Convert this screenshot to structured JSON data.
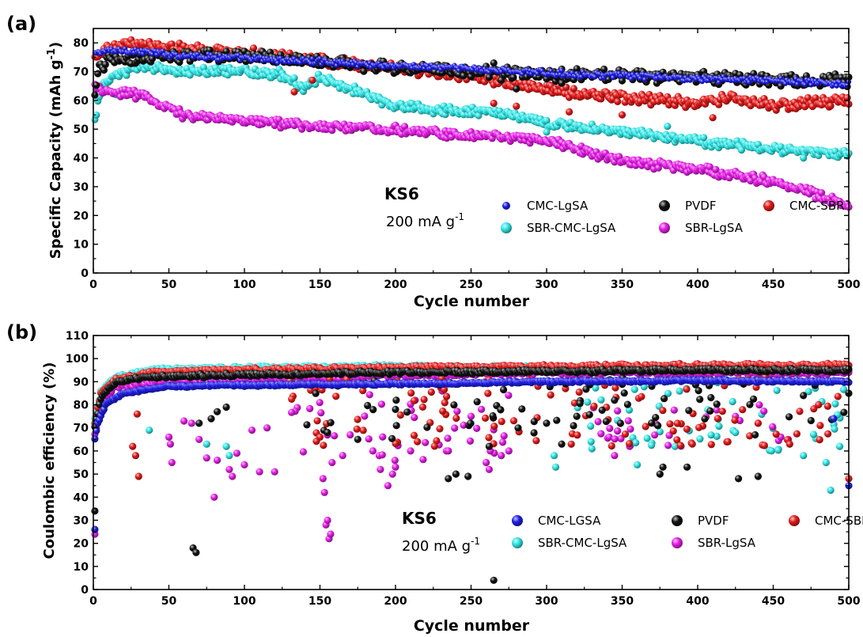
{
  "charts": [
    {
      "panel_label": "(a)",
      "type": "scatter",
      "xlabel": "Cycle number",
      "ylabel": "Specific Capacity (mAh g",
      "ylabel_sup": "-1",
      "ylabel_close": ")",
      "xlim": [
        0,
        500
      ],
      "ylim": [
        0,
        85
      ],
      "x_ticks": [
        0,
        50,
        100,
        150,
        200,
        250,
        300,
        350,
        400,
        450,
        500
      ],
      "y_ticks": [
        0,
        10,
        20,
        30,
        40,
        50,
        60,
        70,
        80
      ],
      "grid": false,
      "annotation_title": "KS6",
      "annotation_rate": "200 mA g",
      "annotation_rate_sup": "-1",
      "legend_position": "bottom-right",
      "series": [
        {
          "name": "CMC-LgSA",
          "color": "#1e1ee6",
          "size": "small",
          "keypoints": [
            [
              1,
              76
            ],
            [
              5,
              77
            ],
            [
              20,
              77.5
            ],
            [
              50,
              76
            ],
            [
              100,
              74.5
            ],
            [
              150,
              73.5
            ],
            [
              200,
              72
            ],
            [
              250,
              71
            ],
            [
              300,
              69.5
            ],
            [
              350,
              68.5
            ],
            [
              400,
              67.5
            ],
            [
              450,
              67
            ],
            [
              500,
              65.5
            ]
          ],
          "noise": 0.8
        },
        {
          "name": "PVDF",
          "color": "#101010",
          "size": "large",
          "keypoints": [
            [
              1,
              62
            ],
            [
              3,
              70
            ],
            [
              10,
              74
            ],
            [
              30,
              75
            ],
            [
              80,
              75.5
            ],
            [
              130,
              74.5
            ],
            [
              200,
              71.5
            ],
            [
              260,
              70
            ],
            [
              300,
              69
            ],
            [
              350,
              68.5
            ],
            [
              400,
              68
            ],
            [
              450,
              67
            ],
            [
              500,
              67
            ]
          ],
          "noise": 1.6,
          "outliers": [
            [
              77,
              77.5
            ],
            [
              265,
              73
            ],
            [
              270,
              67
            ],
            [
              280,
              64
            ],
            [
              310,
              66
            ],
            [
              320,
              71
            ],
            [
              400,
              69
            ],
            [
              455,
              65
            ]
          ]
        },
        {
          "name": "CMC-SBR",
          "color": "#e41a1a",
          "size": "large",
          "keypoints": [
            [
              1,
              75
            ],
            [
              10,
              78
            ],
            [
              25,
              79.5
            ],
            [
              60,
              78
            ],
            [
              100,
              76.5
            ],
            [
              150,
              74
            ],
            [
              200,
              71
            ],
            [
              250,
              68
            ],
            [
              300,
              64
            ],
            [
              350,
              61
            ],
            [
              400,
              59
            ],
            [
              420,
              61
            ],
            [
              450,
              58
            ],
            [
              500,
              60
            ]
          ],
          "noise": 1.4,
          "outliers": [
            [
              133,
              63
            ],
            [
              145,
              67
            ],
            [
              265,
              59
            ],
            [
              280,
              58
            ],
            [
              315,
              56
            ],
            [
              350,
              55
            ],
            [
              410,
              54
            ]
          ]
        },
        {
          "name": "SBR-CMC-LgSA",
          "color": "#33e6e6",
          "size": "large",
          "keypoints": [
            [
              1,
              53
            ],
            [
              5,
              65
            ],
            [
              20,
              70
            ],
            [
              30,
              72
            ],
            [
              60,
              70
            ],
            [
              100,
              70
            ],
            [
              125,
              69
            ],
            [
              140,
              64
            ],
            [
              150,
              68
            ],
            [
              170,
              64
            ],
            [
              200,
              58
            ],
            [
              250,
              56
            ],
            [
              270,
              56
            ],
            [
              300,
              52
            ],
            [
              350,
              49
            ],
            [
              400,
              46
            ],
            [
              450,
              43
            ],
            [
              500,
              41
            ]
          ],
          "noise": 1.2,
          "outliers": [
            [
              15,
              62
            ],
            [
              300,
              49
            ],
            [
              380,
              51
            ],
            [
              470,
              40
            ]
          ]
        },
        {
          "name": "SBR-LgSA",
          "color": "#e61ee6",
          "size": "large",
          "keypoints": [
            [
              1,
              65
            ],
            [
              10,
              63
            ],
            [
              30,
              62
            ],
            [
              50,
              57
            ],
            [
              60,
              55
            ],
            [
              100,
              53
            ],
            [
              150,
              51
            ],
            [
              200,
              50
            ],
            [
              250,
              48
            ],
            [
              300,
              46
            ],
            [
              320,
              43
            ],
            [
              350,
              39
            ],
            [
              400,
              36
            ],
            [
              450,
              32
            ],
            [
              480,
              27
            ],
            [
              500,
              23
            ]
          ],
          "noise": 1.2
        }
      ]
    },
    {
      "panel_label": "(b)",
      "type": "scatter",
      "xlabel": "Cycle number",
      "ylabel": "Coulombic efficiency (%)",
      "xlim": [
        0,
        500
      ],
      "ylim": [
        0,
        110
      ],
      "x_ticks": [
        0,
        50,
        100,
        150,
        200,
        250,
        300,
        350,
        400,
        450,
        500
      ],
      "y_ticks": [
        0,
        10,
        20,
        30,
        40,
        50,
        60,
        70,
        80,
        90,
        100,
        110
      ],
      "grid": false,
      "annotation_title": "KS6",
      "annotation_rate": "200 mA g",
      "annotation_rate_sup": "-1",
      "legend_position": "bottom-right",
      "series": [
        {
          "name": "CMC-LGSA",
          "color": "#1e1ee6",
          "size": "large",
          "keypoints": [
            [
              1,
              65
            ],
            [
              3,
              72
            ],
            [
              8,
              80
            ],
            [
              20,
              85
            ],
            [
              50,
              88
            ],
            [
              100,
              88.5
            ],
            [
              200,
              89
            ],
            [
              300,
              90
            ],
            [
              400,
              90.5
            ],
            [
              500,
              90
            ]
          ],
          "noise": 0.4,
          "outliers": [
            [
              1,
              26
            ],
            [
              500,
              45
            ],
            [
              490,
              74
            ]
          ]
        },
        {
          "name": "PVDF",
          "color": "#101010",
          "size": "large",
          "keypoints": [
            [
              1,
              70
            ],
            [
              5,
              83
            ],
            [
              15,
              90
            ],
            [
              40,
              92
            ],
            [
              100,
              93
            ],
            [
              200,
              94
            ],
            [
              300,
              94.5
            ],
            [
              400,
              95
            ],
            [
              500,
              95
            ]
          ],
          "noise": 0.6,
          "outliers": [
            [
              1,
              34
            ],
            [
              66,
              18
            ],
            [
              68,
              16
            ],
            [
              70,
              72
            ],
            [
              78,
              74
            ],
            [
              82,
              77
            ],
            [
              88,
              79
            ],
            [
              155,
              68
            ],
            [
              175,
              65
            ],
            [
              200,
              78
            ],
            [
              235,
              48
            ],
            [
              240,
              50
            ],
            [
              248,
              49
            ],
            [
              262,
              62
            ],
            [
              265,
              4
            ],
            [
              300,
              72
            ],
            [
              310,
              63
            ],
            [
              320,
              75
            ],
            [
              345,
              82
            ],
            [
              375,
              50
            ],
            [
              377,
              53
            ],
            [
              393,
              53
            ],
            [
              427,
              48
            ],
            [
              440,
              49
            ],
            [
              438,
              67
            ],
            [
              470,
              84
            ],
            [
              500,
              85
            ]
          ],
          "scatter_band": [
            [
              130,
              300,
              65,
              92,
              28
            ],
            [
              300,
              500,
              70,
              92,
              40
            ]
          ]
        },
        {
          "name": "CMC-SBR",
          "color": "#e41a1a",
          "size": "large",
          "keypoints": [
            [
              1,
              72
            ],
            [
              5,
              85
            ],
            [
              15,
              91
            ],
            [
              40,
              94
            ],
            [
              100,
              95
            ],
            [
              200,
              96
            ],
            [
              300,
              96.5
            ],
            [
              400,
              97
            ],
            [
              500,
              97
            ]
          ],
          "noise": 0.7,
          "outliers": [
            [
              26,
              62
            ],
            [
              28,
              58
            ],
            [
              30,
              49
            ],
            [
              29,
              76
            ],
            [
              150,
              66
            ],
            [
              420,
              64
            ],
            [
              440,
              72
            ],
            [
              480,
              80
            ],
            [
              500,
              48
            ]
          ],
          "scatter_band": [
            [
              125,
              500,
              62,
              92,
              120
            ]
          ]
        },
        {
          "name": "SBR-CMC-LgSA",
          "color": "#33e6e6",
          "size": "large",
          "keypoints": [
            [
              1,
              74
            ],
            [
              5,
              86
            ],
            [
              15,
              92
            ],
            [
              40,
              95
            ],
            [
              100,
              96
            ],
            [
              200,
              96.5
            ],
            [
              300,
              96
            ],
            [
              400,
              96
            ],
            [
              500,
              95
            ]
          ],
          "noise": 0.7,
          "outliers": [
            [
              37,
              69
            ],
            [
              75,
              63
            ],
            [
              88,
              62
            ],
            [
              90,
              58
            ],
            [
              250,
              72
            ],
            [
              305,
              58
            ],
            [
              306,
              53
            ],
            [
              330,
              61
            ],
            [
              360,
              54
            ],
            [
              385,
              62
            ],
            [
              425,
              68
            ],
            [
              470,
              58
            ],
            [
              485,
              55
            ],
            [
              488,
              43
            ],
            [
              494,
              62
            ]
          ],
          "scatter_band": [
            [
              320,
              500,
              60,
              90,
              50
            ]
          ]
        },
        {
          "name": "SBR-LgSA",
          "color": "#e61ee6",
          "size": "large",
          "keypoints": [
            [
              1,
              67
            ],
            [
              5,
              80
            ],
            [
              15,
              88
            ],
            [
              40,
              90
            ],
            [
              100,
              91
            ],
            [
              200,
              93
            ],
            [
              300,
              94
            ],
            [
              400,
              94
            ],
            [
              500,
              94
            ]
          ],
          "noise": 0.8,
          "outliers": [
            [
              1,
              24
            ],
            [
              50,
              66
            ],
            [
              51,
              63
            ],
            [
              52,
              55
            ],
            [
              60,
              73
            ],
            [
              65,
              72
            ],
            [
              70,
              65
            ],
            [
              75,
              57
            ],
            [
              80,
              40
            ],
            [
              82,
              56
            ],
            [
              90,
              52
            ],
            [
              92,
              49
            ],
            [
              95,
              59
            ],
            [
              100,
              54
            ],
            [
              105,
              69
            ],
            [
              110,
              51
            ],
            [
              115,
              70
            ],
            [
              120,
              51
            ],
            [
              152,
              48
            ],
            [
              153,
              42
            ],
            [
              154,
              28
            ],
            [
              155,
              30
            ],
            [
              156,
              22
            ],
            [
              157,
              24
            ],
            [
              158,
              55
            ],
            [
              165,
              58
            ],
            [
              170,
              67
            ],
            [
              185,
              60
            ],
            [
              190,
              52
            ],
            [
              195,
              45
            ],
            [
              198,
              50
            ],
            [
              200,
              53
            ],
            [
              210,
              60
            ],
            [
              235,
              60
            ],
            [
              250,
              75
            ],
            [
              260,
              55
            ],
            [
              262,
              52
            ],
            [
              270,
              58
            ],
            [
              275,
              60
            ],
            [
              345,
              58
            ],
            [
              355,
              62
            ],
            [
              425,
              75
            ],
            [
              440,
              72
            ],
            [
              455,
              66
            ],
            [
              460,
              65
            ]
          ],
          "scatter_band": [
            [
              130,
              280,
              55,
              90,
              40
            ],
            [
              330,
              460,
              62,
              80,
              25
            ]
          ]
        }
      ]
    }
  ]
}
